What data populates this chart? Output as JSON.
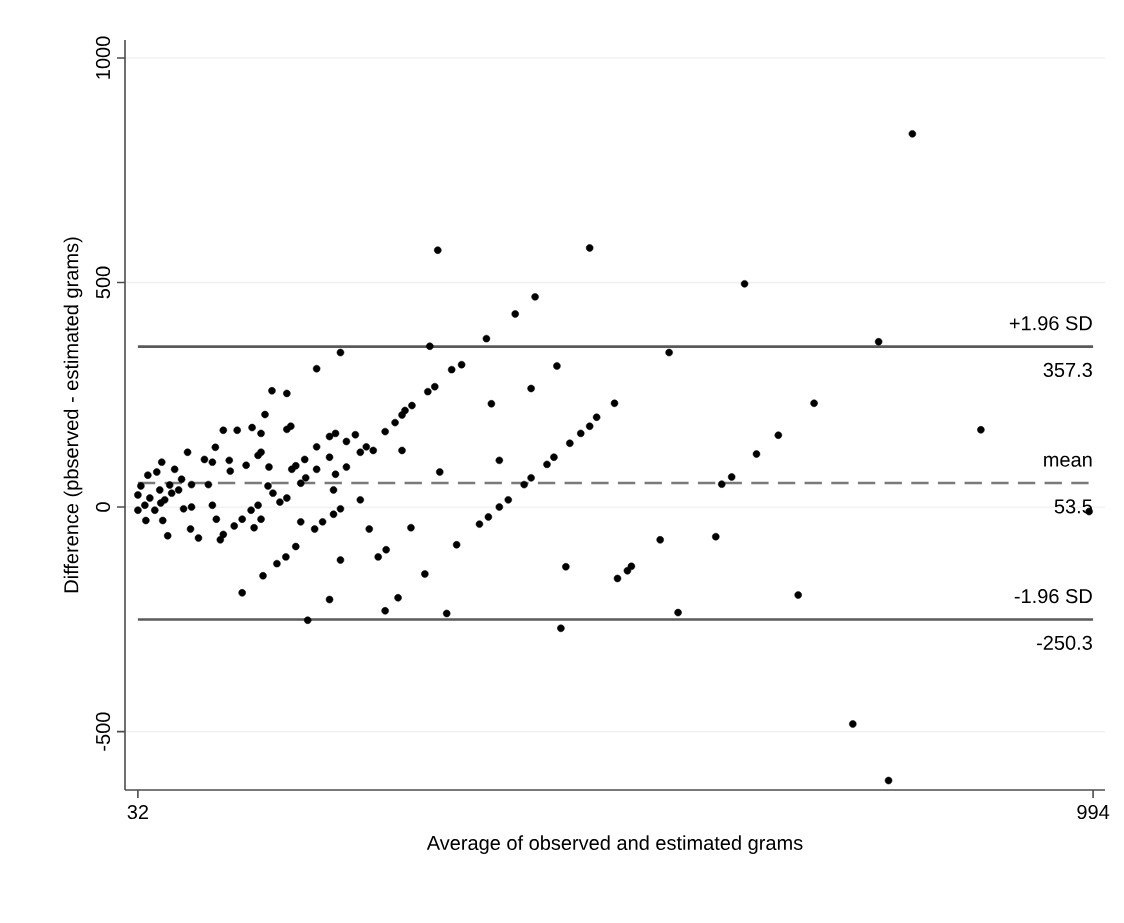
{
  "chart_data": {
    "type": "scatter",
    "xlabel": "Average of observed and estimated grams",
    "ylabel": "Difference (pbserved - estimated grams)",
    "xlim": [
      19,
      1006
    ],
    "xticks": [
      32,
      994
    ],
    "ylim": [
      -630,
      1040
    ],
    "yticks": [
      -500,
      0,
      500,
      1000
    ],
    "grid": "y",
    "marker": "circle",
    "color": "#000000",
    "x": [
      236,
      212,
      167,
      182,
      160,
      118,
      132,
      147,
      156,
      182,
      186,
      82,
      99,
      110,
      107,
      124,
      125,
      141,
      153,
      156,
      164,
      212,
      225,
      231,
      242,
      225,
      212,
      200,
      187,
      191,
      242,
      231,
      201,
      196,
      229,
      236,
      229,
      218,
      210,
      196,
      182,
      175,
      168,
      163,
      153,
      146,
      149,
      156,
      137,
      129,
      118,
      115,
      111,
      107,
      103,
      93,
      85,
      78,
      76,
      69,
      51,
      62,
      57,
      40,
      32,
      32,
      35,
      49,
      55,
      66,
      73,
      236,
      225,
      203,
      191,
      181,
      172,
      158,
      137,
      86,
      86,
      334,
      487,
      432,
      412,
      383,
      326,
      358,
      348,
      331,
      324,
      308,
      301,
      298,
      291,
      281,
      251,
      262,
      256,
      269,
      298,
      336,
      388,
      428,
      454,
      396,
      494,
      487,
      478,
      467,
      451,
      444,
      428,
      421,
      405,
      396,
      385,
      376,
      353,
      256,
      265,
      307,
      282,
      274,
      321,
      294,
      281,
      343,
      463,
      458,
      812,
      643,
      567,
      778,
      512,
      713,
      881,
      677,
      655,
      630,
      620,
      990,
      558,
      614,
      529,
      525,
      515,
      697,
      576,
      752,
      788,
      39,
      44,
      59,
      54,
      64,
      42,
      56
    ],
    "values": [
      344,
      308,
      259,
      253,
      206,
      171,
      171,
      177,
      164,
      173,
      180,
      122,
      106,
      133,
      100,
      104,
      80,
      93,
      115,
      122,
      89,
      134,
      157,
      164,
      146,
      111,
      84,
      106,
      84,
      92,
      89,
      73,
      65,
      53,
      38,
      -4,
      -16,
      -33,
      -49,
      -33,
      20,
      11,
      31,
      47,
      4,
      -7,
      -46,
      -27,
      -27,
      -42,
      -61,
      -73,
      -27,
      4,
      50,
      -69,
      -49,
      -4,
      62,
      84,
      78,
      -64,
      -30,
      -30,
      -7,
      27,
      47,
      -7,
      9,
      31,
      38,
      -118,
      -206,
      -252,
      -88,
      -111,
      -126,
      -153,
      -191,
      50,
      0,
      572,
      577,
      468,
      430,
      375,
      358,
      317,
      306,
      268,
      257,
      226,
      215,
      205,
      188,
      168,
      161,
      134,
      122,
      126,
      126,
      78,
      230,
      264,
      314,
      104,
      200,
      180,
      164,
      142,
      111,
      95,
      65,
      50,
      16,
      0,
      -22,
      -38,
      -84,
      16,
      -49,
      -46,
      -95,
      -111,
      -149,
      -202,
      -231,
      -237,
      -133,
      -270,
      831,
      497,
      344,
      368,
      231,
      231,
      172,
      160,
      118,
      67,
      51,
      -10,
      -73,
      -66,
      -132,
      -142,
      -159,
      -196,
      -235,
      -483,
      -609,
      4,
      20,
      16,
      38,
      49,
      71,
      100
    ],
    "ref_lines": [
      {
        "axis": "y",
        "value": 357.3,
        "label": "+1.96 SD",
        "color": "#5a5a5a",
        "line_style": "solid"
      },
      {
        "axis": "y",
        "value": 53.5,
        "label": "mean",
        "color": "#7a7a7a",
        "line_style": "dashed"
      },
      {
        "axis": "y",
        "value": -250.3,
        "label": "-1.96 SD",
        "color": "#5a5a5a",
        "line_style": "solid"
      }
    ],
    "annotations": [
      {
        "text": "357.3",
        "y": 357.3
      },
      {
        "text": "53.5",
        "y": 53.5
      },
      {
        "text": "-250.3",
        "y": -250.3
      }
    ]
  }
}
